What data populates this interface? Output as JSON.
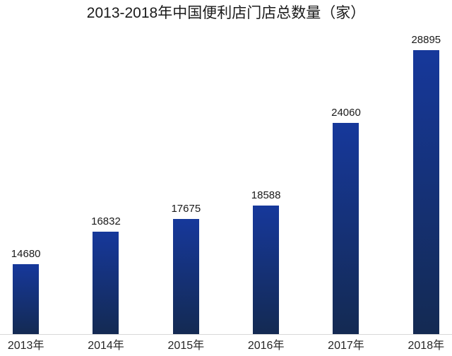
{
  "chart_data": {
    "type": "bar",
    "title": "2013-2018年中国便利店门店总数量（家）",
    "categories": [
      "2013年",
      "2014年",
      "2015年",
      "2016年",
      "2017年",
      "2018年"
    ],
    "values": [
      14680,
      16832,
      17675,
      18588,
      24060,
      28895
    ],
    "xlabel": "",
    "ylabel": "",
    "ylim": [
      10000,
      28895
    ],
    "grid": false,
    "legend": false,
    "colors": {
      "bar_gradient_top": "#16389b",
      "bar_gradient_bottom": "#142a52",
      "axis_line": "#d9d9d9",
      "title_text": "#1a1a1a",
      "value_label_text": "#1a1a1a",
      "tick_label_text": "#262626",
      "background": "#ffffff"
    }
  }
}
